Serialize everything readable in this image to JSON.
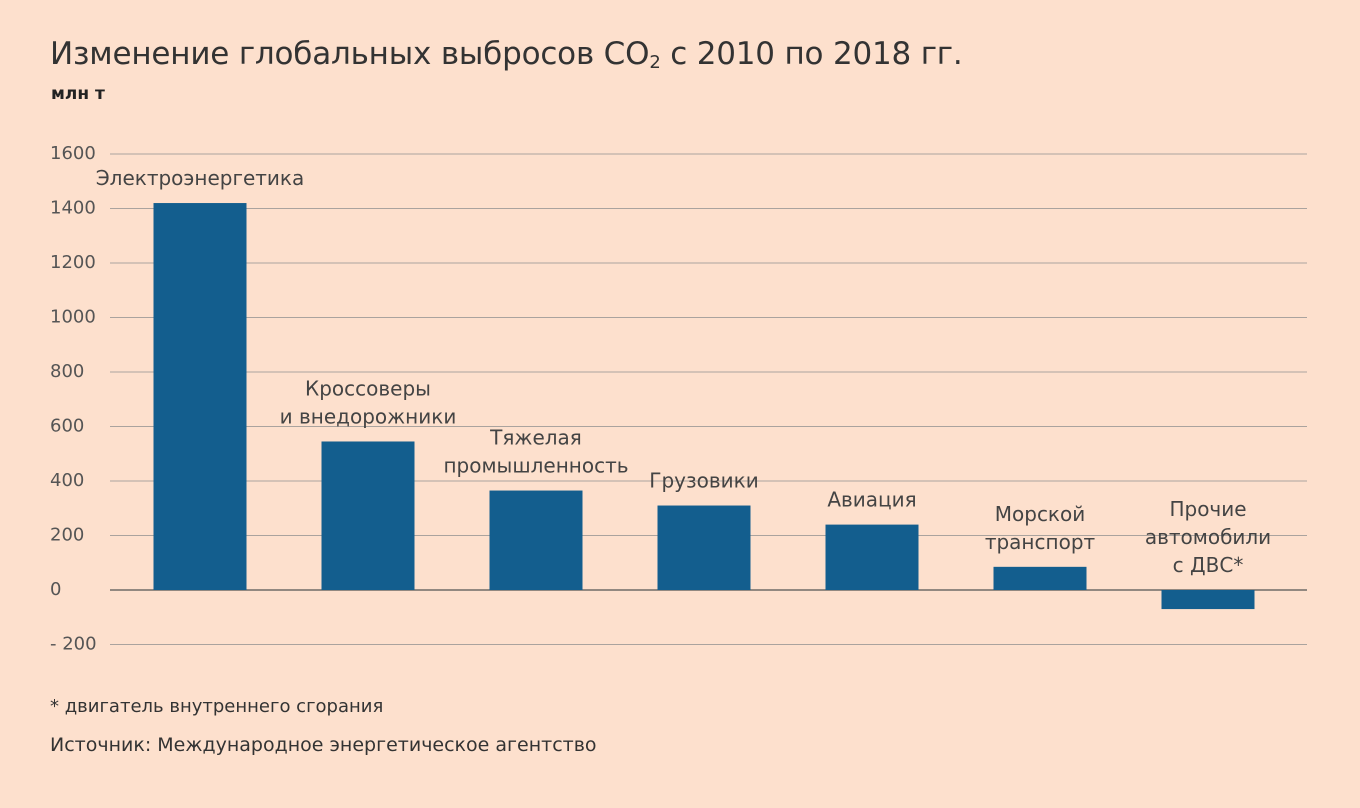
{
  "header": {
    "title_main": "Изменение глобальных выбросов CO",
    "title_sub": "2",
    "title_rest": " с 2010 по 2018 гг.",
    "unit": "млн т"
  },
  "chart_data": {
    "type": "bar",
    "title": "Изменение глобальных выбросов CO2 с 2010 по 2018 гг.",
    "ylabel": "млн т",
    "xlabel": "",
    "ylim": [
      -200,
      1600
    ],
    "yticks": [
      {
        "value": 1600,
        "label": "1600"
      },
      {
        "value": 1400,
        "label": "1400"
      },
      {
        "value": 1200,
        "label": "1200"
      },
      {
        "value": 1000,
        "label": "1000"
      },
      {
        "value": 800,
        "label": "800"
      },
      {
        "value": 600,
        "label": "600"
      },
      {
        "value": 400,
        "label": "400"
      },
      {
        "value": 200,
        "label": "200"
      },
      {
        "value": 0,
        "label": "0"
      },
      {
        "value": -200,
        "label": "- 200"
      }
    ],
    "grid": true,
    "categories": [
      [
        "Электроэнергетика"
      ],
      [
        "Кроссоверы",
        "и внедорожники"
      ],
      [
        "Тяжелая",
        "промышленность"
      ],
      [
        "Грузовики"
      ],
      [
        "Авиация"
      ],
      [
        "Морской",
        "транспорт"
      ],
      [
        "Прочие",
        "автомобили",
        "с ДВС*"
      ]
    ],
    "values": [
      1420,
      545,
      365,
      310,
      240,
      85,
      -70
    ],
    "bar_color": "#135e8e"
  },
  "footer": {
    "footnote": "* двигатель внутреннего сгорания",
    "source": "Источник: Международное энергетическое агентство"
  }
}
